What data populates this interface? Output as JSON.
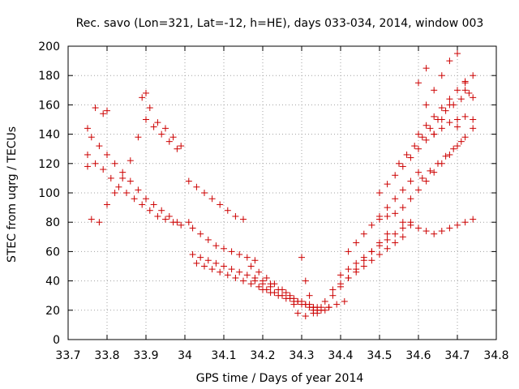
{
  "chart_data": {
    "type": "scatter",
    "title": "Rec. savo (Lon=321, Lat=-12, h=HE), days 033-034, 2014, window 003",
    "xlabel": "GPS time / Days of year 2014",
    "ylabel": "STEC from uqrg / TECUs",
    "xlim": [
      33.7,
      34.8
    ],
    "ylim": [
      0,
      200
    ],
    "x_ticks": [
      "33.7",
      "33.8",
      "33.9",
      "34",
      "34.1",
      "34.2",
      "34.3",
      "34.4",
      "34.5",
      "34.6",
      "34.7",
      "34.8"
    ],
    "y_ticks": [
      "0",
      "20",
      "40",
      "60",
      "80",
      "100",
      "120",
      "140",
      "160",
      "180",
      "200"
    ],
    "grid": true,
    "marker": "+",
    "point_color": "#cc0000",
    "x": [
      33.75,
      33.76,
      33.78,
      33.8,
      33.82,
      33.84,
      33.86,
      33.88,
      33.9,
      33.92,
      33.94,
      33.96,
      33.98,
      33.75,
      33.77,
      33.79,
      33.81,
      33.83,
      33.85,
      33.87,
      33.89,
      33.91,
      33.93,
      33.95,
      33.97,
      33.99,
      33.76,
      33.78,
      33.8,
      33.82,
      33.84,
      33.86,
      33.88,
      33.9,
      33.92,
      33.94,
      33.96,
      33.98,
      33.75,
      33.77,
      33.79,
      33.8,
      33.89,
      33.9,
      33.91,
      33.93,
      33.95,
      33.97,
      33.99,
      34.01,
      34.03,
      34.05,
      34.07,
      34.09,
      34.11,
      34.13,
      34.15,
      34.01,
      34.02,
      34.04,
      34.06,
      34.08,
      34.1,
      34.12,
      34.14,
      34.16,
      34.18,
      34.02,
      34.04,
      34.06,
      34.08,
      34.1,
      34.12,
      34.14,
      34.16,
      34.18,
      34.2,
      34.22,
      34.03,
      34.05,
      34.07,
      34.09,
      34.11,
      34.13,
      34.15,
      34.17,
      34.19,
      34.21,
      34.23,
      34.17,
      34.19,
      34.21,
      34.23,
      34.25,
      34.27,
      34.29,
      34.31,
      34.33,
      34.18,
      34.2,
      34.22,
      34.24,
      34.26,
      34.28,
      34.3,
      34.32,
      34.34,
      34.2,
      34.22,
      34.24,
      34.26,
      34.28,
      34.3,
      34.32,
      34.34,
      34.36,
      34.25,
      34.27,
      34.29,
      34.31,
      34.33,
      34.35,
      34.37,
      34.39,
      34.41,
      34.3,
      34.31,
      34.32,
      34.33,
      34.34,
      34.35,
      34.28,
      34.29,
      34.31,
      34.33,
      34.35,
      34.37,
      34.36,
      34.38,
      34.4,
      34.42,
      34.44,
      34.46,
      34.48,
      34.5,
      34.52,
      34.38,
      34.4,
      34.42,
      34.44,
      34.46,
      34.48,
      34.5,
      34.52,
      34.54,
      34.56,
      34.4,
      34.42,
      34.44,
      34.46,
      34.48,
      34.5,
      34.52,
      34.54,
      34.56,
      34.58,
      34.42,
      34.44,
      34.46,
      34.48,
      34.5,
      34.52,
      34.54,
      34.56,
      34.58,
      34.6,
      34.5,
      34.52,
      34.54,
      34.56,
      34.58,
      34.6,
      34.62,
      34.64,
      34.66,
      34.68,
      34.7,
      34.72,
      34.74,
      34.5,
      34.52,
      34.54,
      34.56,
      34.58,
      34.6,
      34.62,
      34.64,
      34.66,
      34.68,
      34.7,
      34.72,
      34.74,
      34.55,
      34.57,
      34.59,
      34.61,
      34.63,
      34.65,
      34.67,
      34.69,
      34.71,
      34.73,
      34.56,
      34.58,
      34.6,
      34.62,
      34.64,
      34.66,
      34.68,
      34.7,
      34.72,
      34.74,
      34.6,
      34.62,
      34.64,
      34.66,
      34.68,
      34.7,
      34.72,
      34.74,
      34.61,
      34.63,
      34.65,
      34.67,
      34.69,
      34.71,
      34.62,
      34.64,
      34.66,
      34.68,
      34.7,
      34.72,
      34.74,
      34.66,
      34.62,
      34.68,
      34.6,
      34.64,
      34.7,
      34.72
    ],
    "y": [
      144,
      138,
      132,
      126,
      120,
      114,
      108,
      102,
      96,
      92,
      88,
      84,
      80,
      126,
      120,
      116,
      110,
      104,
      100,
      96,
      92,
      88,
      84,
      82,
      80,
      78,
      82,
      80,
      92,
      100,
      110,
      122,
      138,
      150,
      145,
      140,
      135,
      130,
      118,
      158,
      154,
      156,
      165,
      168,
      158,
      148,
      144,
      138,
      132,
      108,
      104,
      100,
      96,
      92,
      88,
      84,
      82,
      80,
      76,
      72,
      68,
      64,
      62,
      60,
      58,
      56,
      54,
      58,
      56,
      54,
      52,
      50,
      48,
      46,
      44,
      42,
      40,
      38,
      52,
      50,
      48,
      46,
      44,
      42,
      40,
      38,
      36,
      34,
      32,
      50,
      46,
      42,
      38,
      34,
      30,
      26,
      24,
      22,
      40,
      38,
      36,
      34,
      32,
      28,
      26,
      24,
      22,
      34,
      32,
      30,
      28,
      26,
      24,
      22,
      20,
      20,
      30,
      28,
      26,
      24,
      22,
      20,
      22,
      24,
      26,
      56,
      40,
      30,
      20,
      18,
      22,
      24,
      18,
      16,
      18,
      20,
      22,
      26,
      30,
      36,
      42,
      48,
      54,
      60,
      66,
      72,
      34,
      38,
      42,
      46,
      50,
      54,
      58,
      62,
      66,
      70,
      44,
      48,
      52,
      56,
      60,
      64,
      68,
      72,
      76,
      80,
      60,
      66,
      72,
      78,
      84,
      90,
      96,
      102,
      108,
      114,
      82,
      84,
      86,
      80,
      78,
      76,
      74,
      72,
      74,
      76,
      78,
      80,
      82,
      100,
      106,
      112,
      118,
      124,
      130,
      136,
      140,
      144,
      148,
      150,
      152,
      150,
      120,
      126,
      132,
      138,
      144,
      150,
      156,
      160,
      164,
      168,
      90,
      96,
      102,
      108,
      114,
      120,
      126,
      132,
      138,
      144,
      140,
      146,
      152,
      158,
      164,
      170,
      176,
      180,
      110,
      115,
      120,
      125,
      130,
      135,
      160,
      170,
      180,
      190,
      195,
      170,
      165,
      150,
      185,
      160,
      175,
      140,
      145,
      175
    ]
  }
}
